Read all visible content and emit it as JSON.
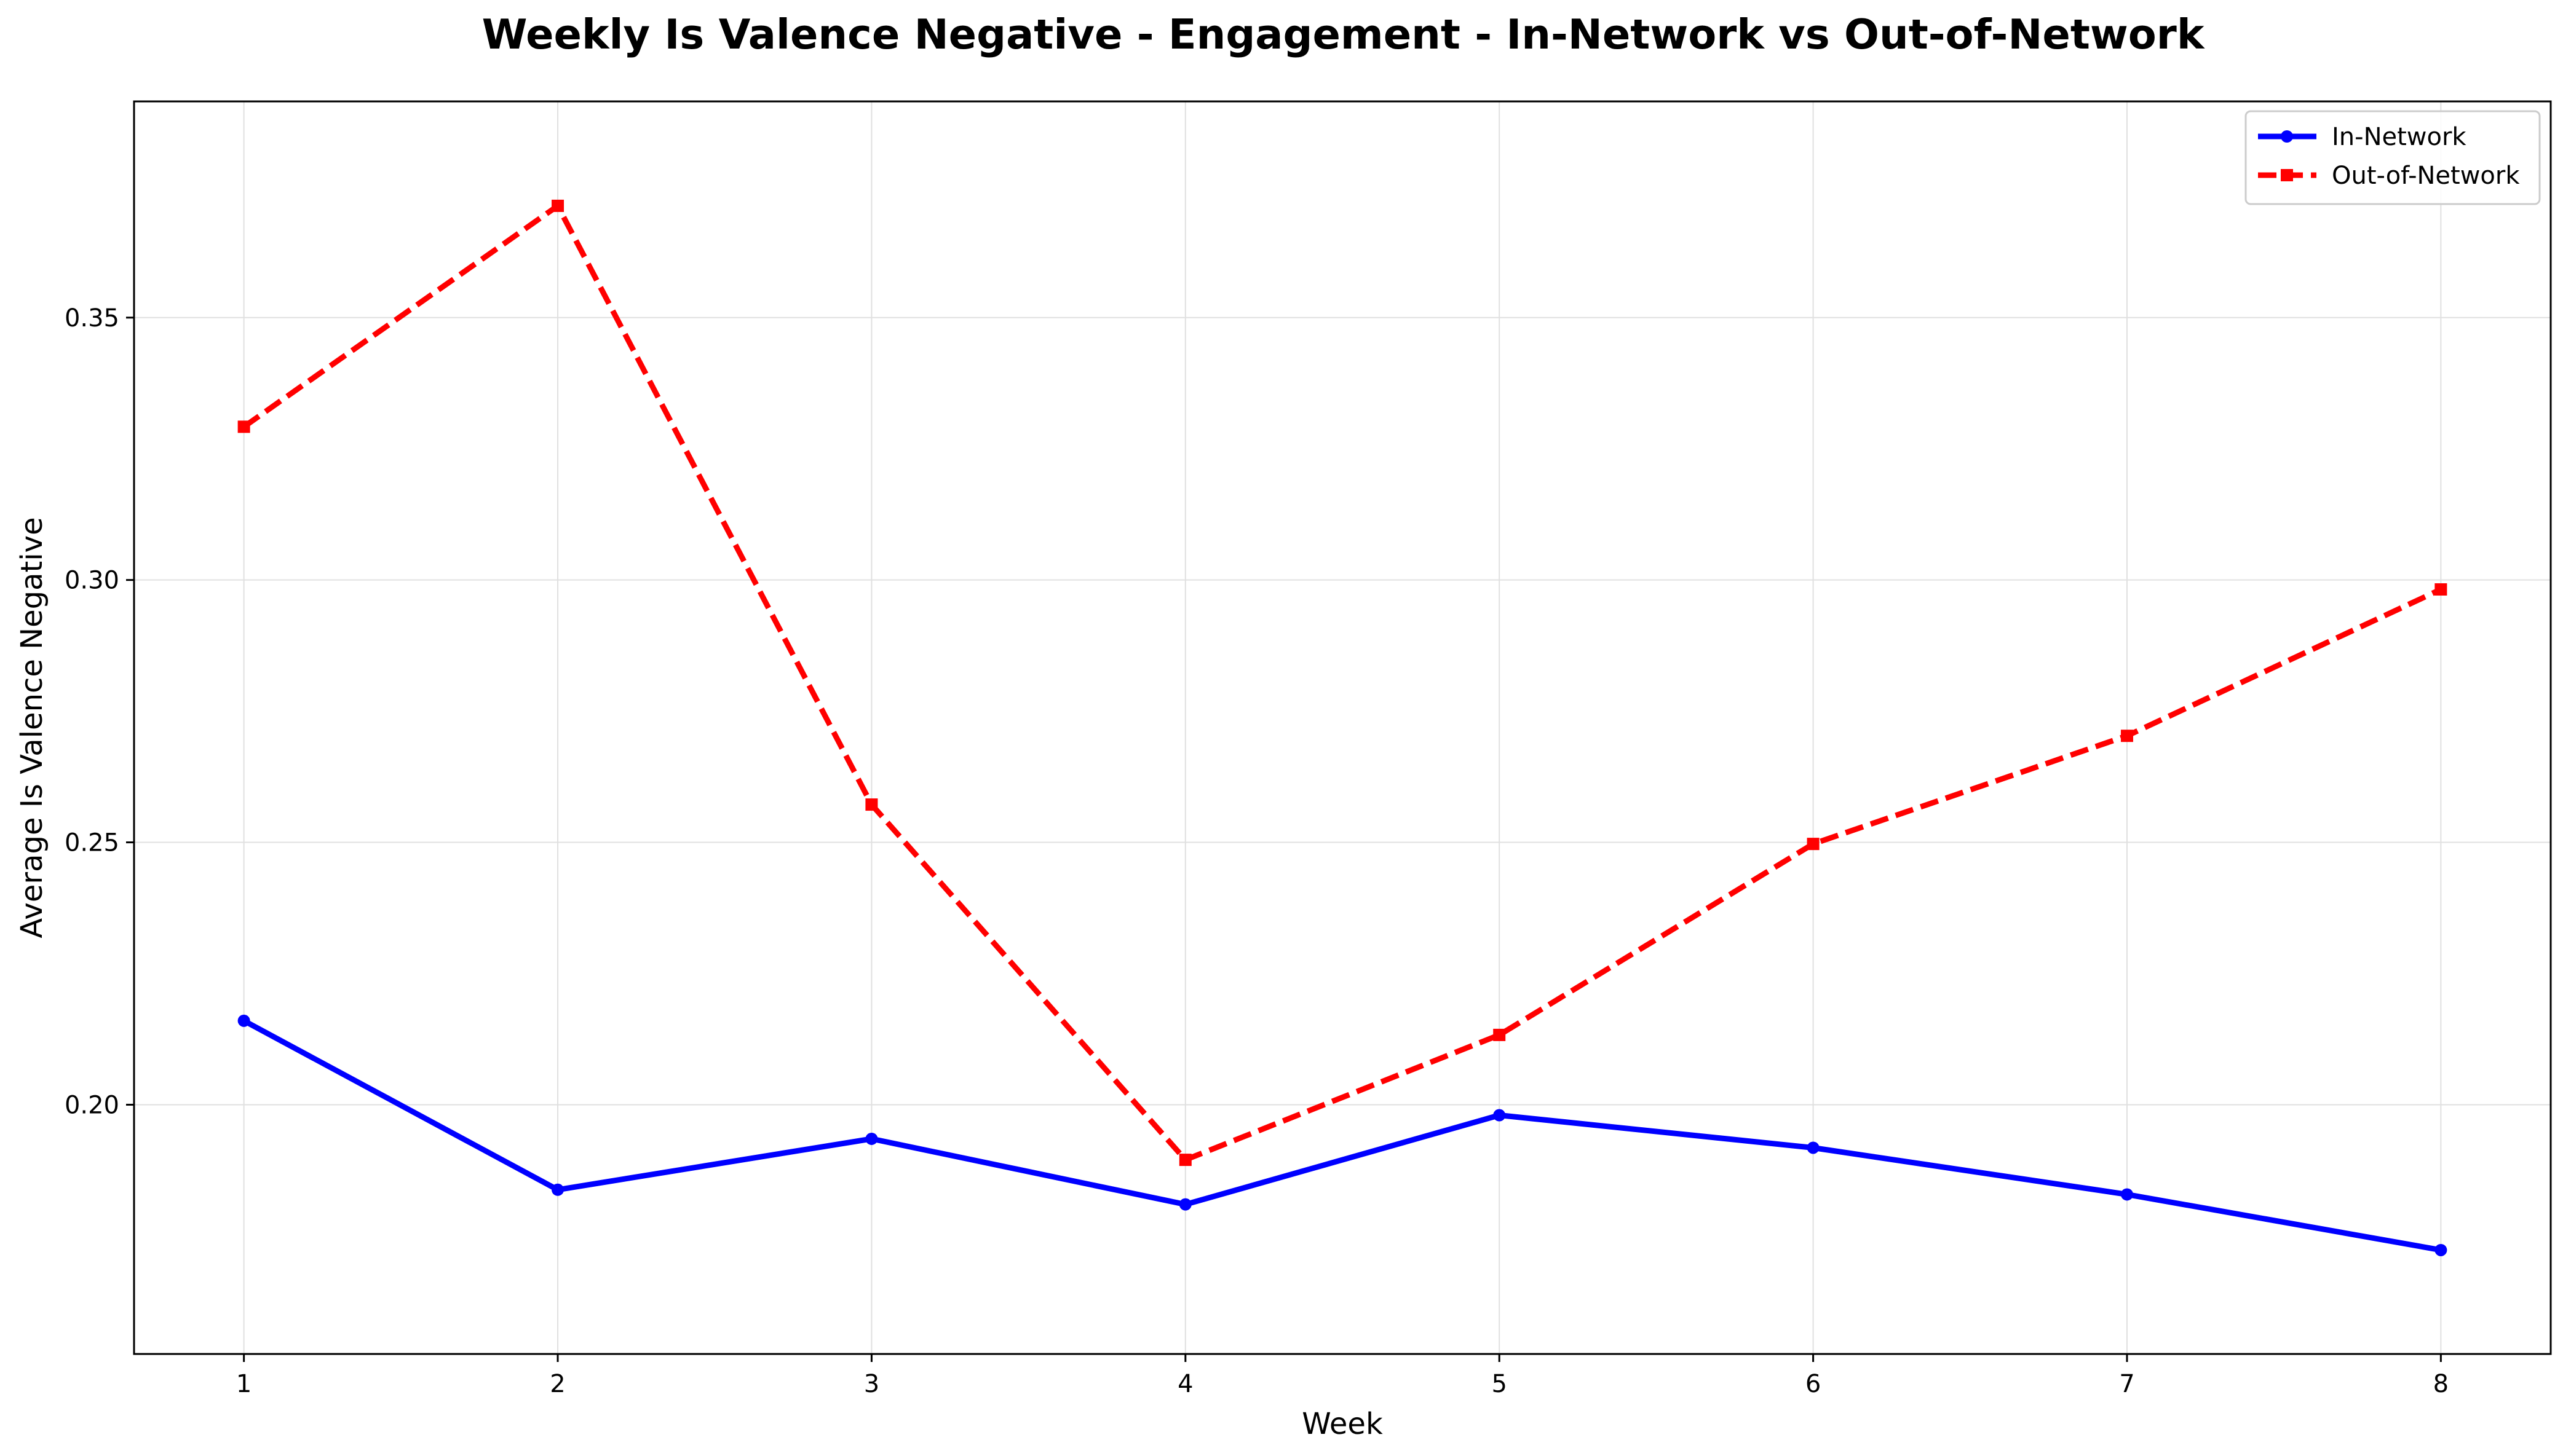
{
  "chart_data": {
    "type": "line",
    "title": "Weekly Is Valence Negative - Engagement - In-Network vs Out-of-Network",
    "xlabel": "Week",
    "ylabel": "Average Is Valence Negative",
    "x": [
      1,
      2,
      3,
      4,
      5,
      6,
      7,
      8
    ],
    "xticks": [
      "1",
      "2",
      "3",
      "4",
      "5",
      "6",
      "7",
      "8"
    ],
    "yticks": [
      "0.20",
      "0.25",
      "0.30",
      "0.35"
    ],
    "xlim": [
      0.65,
      8.35
    ],
    "ylim": [
      0.1525,
      0.3912
    ],
    "grid": true,
    "legend_position": "top-right",
    "series": [
      {
        "name": "In-Network",
        "values": [
          0.216,
          0.1838,
          0.1935,
          0.181,
          0.198,
          0.1918,
          0.1829,
          0.1723
        ],
        "color": "#0000ff",
        "line_style": "solid",
        "marker": "circle"
      },
      {
        "name": "Out-of-Network",
        "values": [
          0.3292,
          0.3713,
          0.2572,
          0.1895,
          0.2133,
          0.2497,
          0.2703,
          0.2982
        ],
        "color": "#ff0000",
        "line_style": "dashed",
        "marker": "square"
      }
    ]
  }
}
